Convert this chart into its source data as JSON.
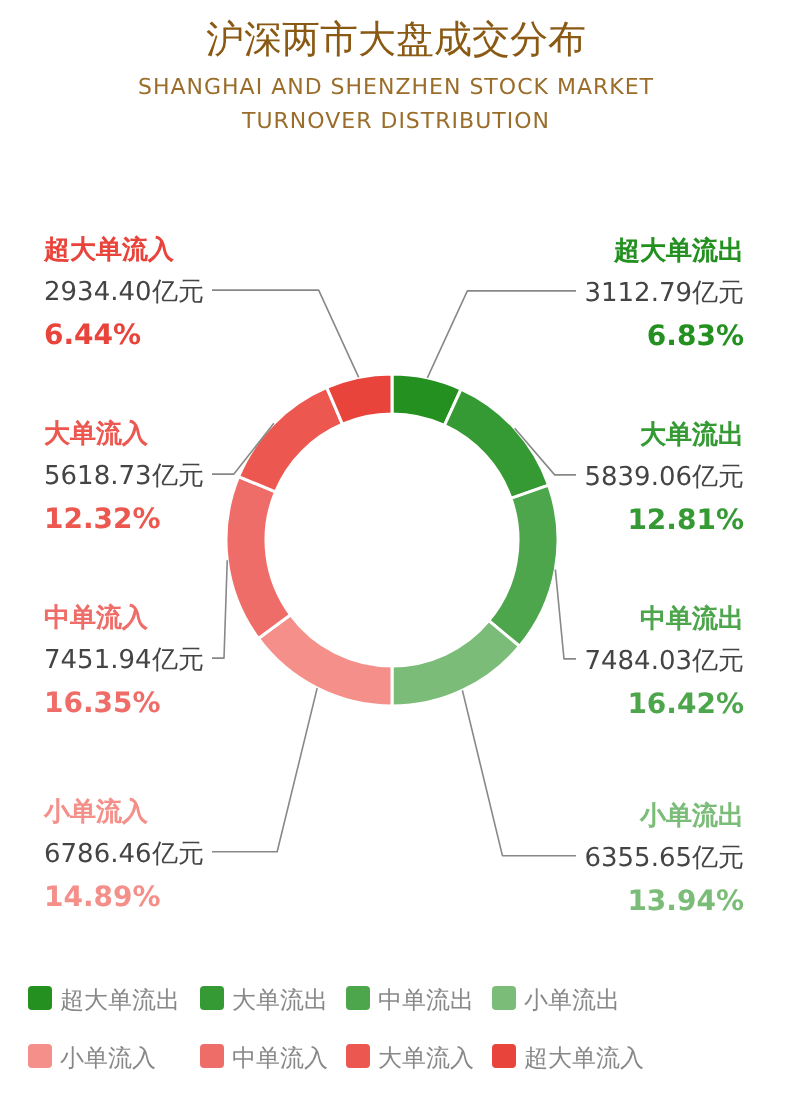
{
  "chart_data": {
    "type": "donut",
    "title": "沪深两市大盘成交分布",
    "subtitle": "SHANGHAI AND SHENZHEN STOCK MARKET TURNOVER DISTRIBUTION",
    "categories": [
      "超大单流出",
      "大单流出",
      "中单流出",
      "小单流出",
      "小单流入",
      "中单流入",
      "大单流入",
      "超大单流入"
    ],
    "values": [
      3112.79,
      5839.06,
      7484.03,
      6355.65,
      6786.46,
      7451.94,
      5618.73,
      2934.4
    ],
    "colors": [
      "#23901f",
      "#359a33",
      "#4ea64c",
      "#7bbd78",
      "#f48f8a",
      "#ef6d68",
      "#ec5750",
      "#e9443b"
    ],
    "value_labels": [
      "3112.79亿元\n6.83%",
      "5839.06亿元\n12.81%",
      "7484.03亿元\n16.42%",
      "6355.65亿元\n13.94%",
      "6786.46亿元\n14.89%",
      "7451.94亿元\n16.35%",
      "5618.73亿元\n12.32%",
      "2934.40亿元\n6.44%"
    ],
    "legend": "bottom"
  }
}
